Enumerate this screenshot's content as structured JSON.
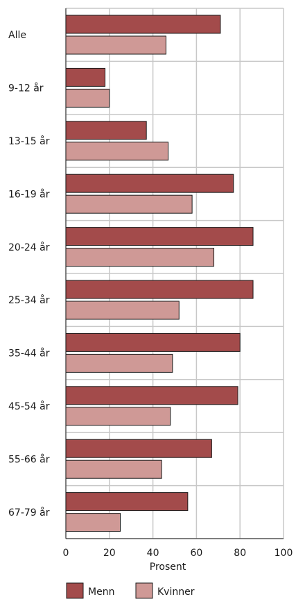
{
  "chart_data": {
    "type": "bar",
    "orientation": "horizontal",
    "categories": [
      "Alle",
      "9-12 år",
      "13-15 år",
      "16-19 år",
      "20-24 år",
      "25-34 år",
      "35-44 år",
      "45-54 år",
      "55-66 år",
      "67-79 år"
    ],
    "series": [
      {
        "name": "Menn",
        "color": "#a34b4b",
        "values": [
          71,
          18,
          37,
          77,
          86,
          86,
          80,
          79,
          67,
          56
        ]
      },
      {
        "name": "Kvinner",
        "color": "#cf9996",
        "values": [
          46,
          20,
          47,
          58,
          68,
          52,
          49,
          48,
          44,
          25
        ]
      }
    ],
    "xlabel": "Prosent",
    "ylabel": "",
    "xlim": [
      0,
      100
    ],
    "xticks": [
      0,
      20,
      40,
      60,
      80,
      100
    ],
    "grid": true,
    "legend_position": "bottom"
  }
}
